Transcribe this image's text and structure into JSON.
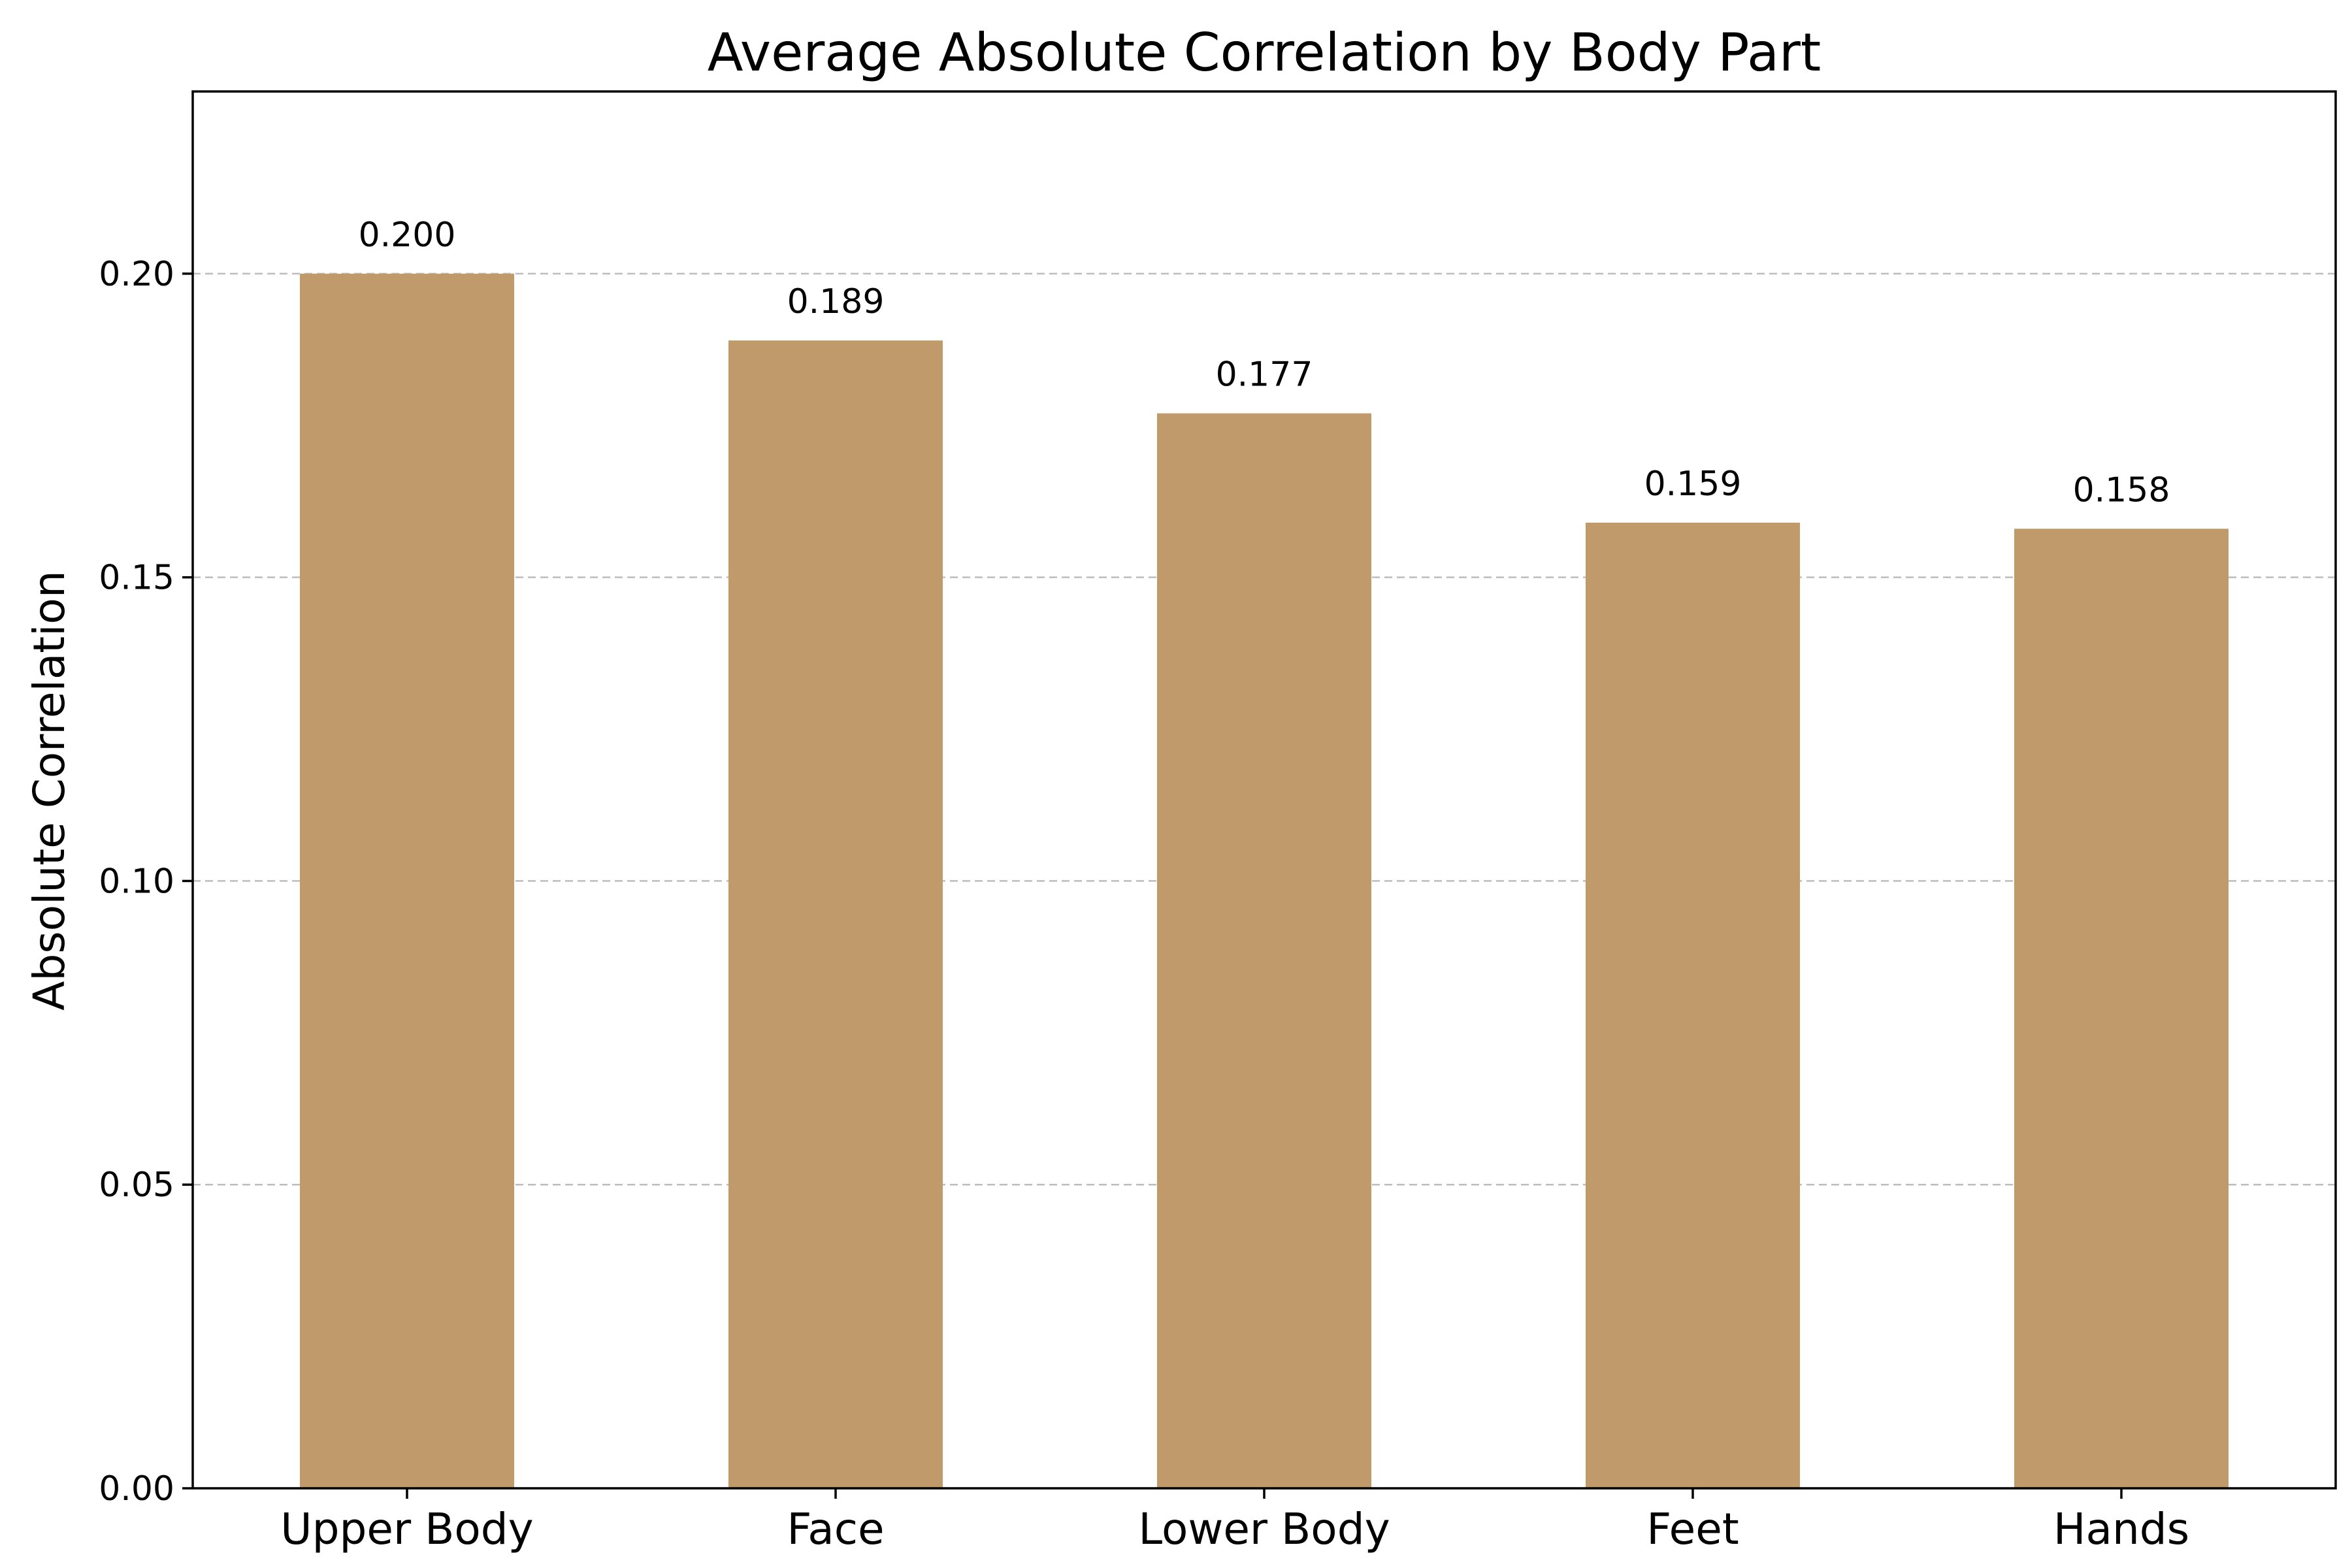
{
  "chart_data": {
    "type": "bar",
    "title": "Average Absolute Correlation by Body Part",
    "xlabel": "",
    "ylabel": "Absolute Correlation",
    "categories": [
      "Upper Body",
      "Face",
      "Lower Body",
      "Feet",
      "Hands"
    ],
    "values": [
      0.2,
      0.189,
      0.177,
      0.159,
      0.158
    ],
    "data_labels": [
      "0.200",
      "0.189",
      "0.177",
      "0.159",
      "0.158"
    ],
    "ylim": [
      0,
      0.23
    ],
    "yticks": [
      0,
      0.05,
      0.1,
      0.15,
      0.2
    ],
    "ytick_labels": [
      "0.00",
      "0.05",
      "0.10",
      "0.15",
      "0.20"
    ],
    "grid": "y-dashed",
    "bar_color": "#c19a6b",
    "legend": "none"
  }
}
